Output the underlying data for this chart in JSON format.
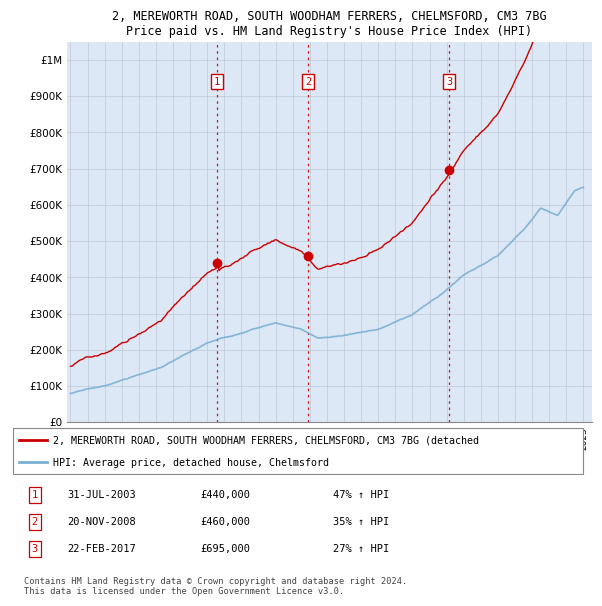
{
  "title_line1": "2, MEREWORTH ROAD, SOUTH WOODHAM FERRERS, CHELMSFORD, CM3 7BG",
  "title_line2": "Price paid vs. HM Land Registry's House Price Index (HPI)",
  "ylabel_ticks": [
    "£0",
    "£100K",
    "£200K",
    "£300K",
    "£400K",
    "£500K",
    "£600K",
    "£700K",
    "£800K",
    "£900K",
    "£1M"
  ],
  "ytick_values": [
    0,
    100000,
    200000,
    300000,
    400000,
    500000,
    600000,
    700000,
    800000,
    900000,
    1000000
  ],
  "xlim": [
    1994.8,
    2025.5
  ],
  "ylim": [
    0,
    1050000
  ],
  "sale_dates": [
    2003.58,
    2008.9,
    2017.15
  ],
  "sale_prices": [
    440000,
    460000,
    695000
  ],
  "sale_labels": [
    "1",
    "2",
    "3"
  ],
  "legend_line1": "2, MEREWORTH ROAD, SOUTH WOODHAM FERRERS, CHELMSFORD, CM3 7BG (detached",
  "legend_line2": "HPI: Average price, detached house, Chelmsford",
  "table_data": [
    [
      "1",
      "31-JUL-2003",
      "£440,000",
      "47% ↑ HPI"
    ],
    [
      "2",
      "20-NOV-2008",
      "£460,000",
      "35% ↑ HPI"
    ],
    [
      "3",
      "22-FEB-2017",
      "£695,000",
      "27% ↑ HPI"
    ]
  ],
  "footer": "Contains HM Land Registry data © Crown copyright and database right 2024.\nThis data is licensed under the Open Government Licence v3.0.",
  "hpi_color": "#7bafd4",
  "price_color": "#cc0000",
  "vline_color": "#cc0000",
  "background_color": "#ffffff",
  "plot_bg_color": "#dce8f5"
}
